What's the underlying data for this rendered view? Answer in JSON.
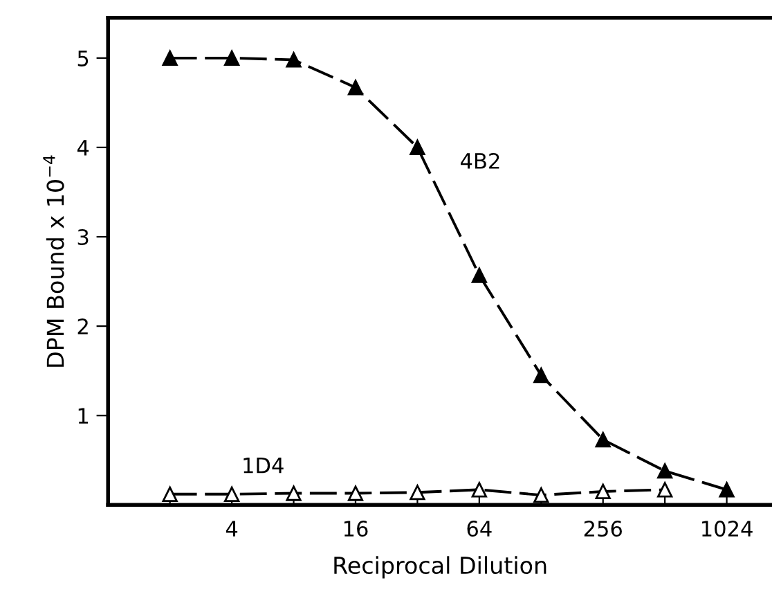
{
  "chart_data": {
    "type": "line",
    "xlabel": "Reciprocal Dilution",
    "ylabel": "DPM Bound x 10$^{−4}$",
    "log": "x",
    "xlim": [
      1,
      1700
    ],
    "xticks": [
      {
        "value": 2,
        "label": null
      },
      4,
      {
        "value": 8,
        "label": null
      },
      16,
      {
        "value": 32,
        "label": null
      },
      64,
      {
        "value": 128,
        "label": null
      },
      256,
      {
        "value": 512,
        "label": null
      },
      1024
    ],
    "ylim": [
      0,
      5.45
    ],
    "yticks": [
      1,
      2,
      3,
      4,
      5
    ],
    "grid": false,
    "legend": false,
    "line_style": "dashed",
    "series": [
      {
        "name": "4B2",
        "color": "#000000",
        "marker": "triangle",
        "x": [
          2,
          4,
          8,
          16,
          32,
          64,
          128,
          256,
          512,
          1024
        ],
        "values": [
          5.0,
          5.0,
          4.98,
          4.67,
          4.0,
          2.57,
          1.45,
          0.73,
          0.38,
          0.17
        ]
      },
      {
        "name": "1D4",
        "color": "#000000",
        "marker": "triangle",
        "x": [
          2,
          4,
          8,
          16,
          32,
          64,
          128,
          256,
          512
        ],
        "values": [
          0.12,
          0.12,
          0.13,
          0.13,
          0.14,
          0.17,
          0.11,
          0.15,
          0.17
        ]
      }
    ]
  }
}
